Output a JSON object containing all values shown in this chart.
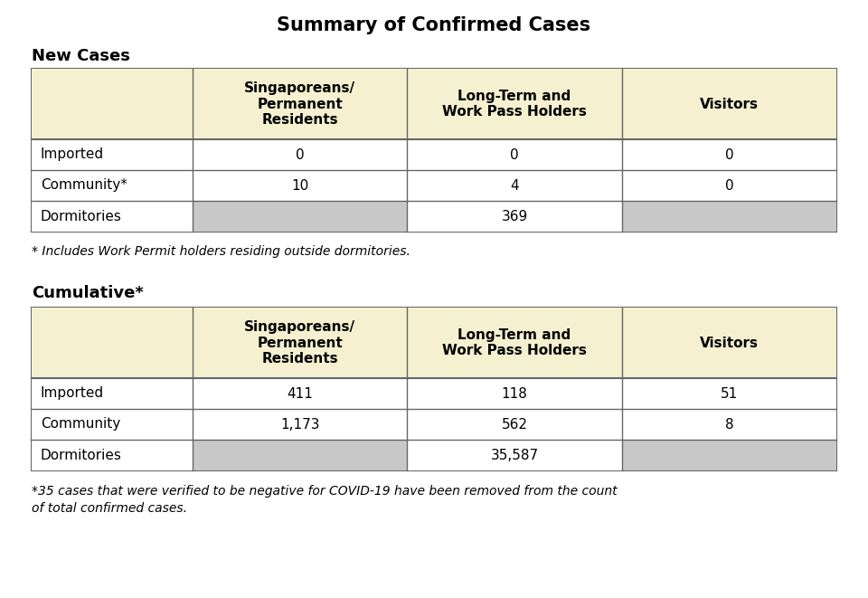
{
  "title": "Summary of Confirmed Cases",
  "background_color": "#ffffff",
  "header_bg": "#f5f0d0",
  "data_bg": "#ffffff",
  "grey_bg": "#c8c8c8",
  "border_color": "#666666",
  "section1_label": "New Cases",
  "section2_label": "Cumulative*",
  "col_headers": [
    "Singaporeans/\nPermanent\nResidents",
    "Long-Term and\nWork Pass Holders",
    "Visitors"
  ],
  "new_cases_rows": [
    {
      "label": "Imported",
      "values": [
        "0",
        "0",
        "0"
      ],
      "grey": [
        false,
        false,
        false
      ]
    },
    {
      "label": "Community*",
      "values": [
        "10",
        "4",
        "0"
      ],
      "grey": [
        false,
        false,
        false
      ]
    },
    {
      "label": "Dormitories",
      "values": [
        "",
        "369",
        ""
      ],
      "grey": [
        true,
        false,
        true
      ]
    }
  ],
  "cumulative_rows": [
    {
      "label": "Imported",
      "values": [
        "411",
        "118",
        "51"
      ],
      "grey": [
        false,
        false,
        false
      ]
    },
    {
      "label": "Community",
      "values": [
        "1,173",
        "562",
        "8"
      ],
      "grey": [
        false,
        false,
        false
      ]
    },
    {
      "label": "Dormitories",
      "values": [
        "",
        "35,587",
        ""
      ],
      "grey": [
        true,
        false,
        true
      ]
    }
  ],
  "footnote1": "* Includes Work Permit holders residing outside dormitories.",
  "footnote2": "*35 cases that were verified to be negative for COVID-19 have been removed from the count\nof total confirmed cases."
}
